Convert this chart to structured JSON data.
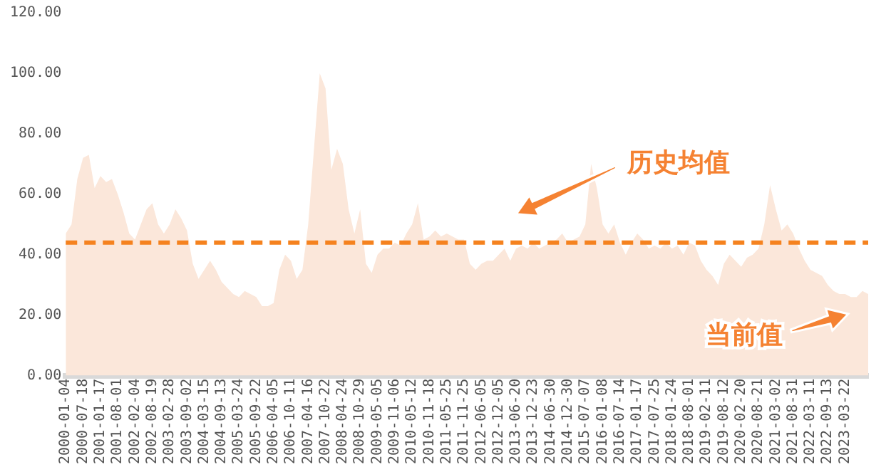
{
  "chart_data": {
    "type": "area",
    "categories": [
      "2000-01-04",
      null,
      null,
      "2000-07-18",
      null,
      null,
      "2001-01-17",
      null,
      null,
      "2001-08-01",
      null,
      null,
      "2002-02-04",
      null,
      null,
      "2002-08-19",
      null,
      null,
      "2003-02-28",
      null,
      null,
      "2003-09-02",
      null,
      null,
      "2004-03-15",
      null,
      null,
      "2004-09-13",
      null,
      null,
      "2005-03-24",
      null,
      null,
      "2005-09-22",
      null,
      null,
      "2006-04-05",
      null,
      null,
      "2006-10-11",
      null,
      null,
      "2007-04-16",
      null,
      null,
      "2007-10-22",
      null,
      null,
      "2008-04-24",
      null,
      null,
      "2008-10-29",
      null,
      null,
      "2009-05-05",
      null,
      null,
      "2009-11-06",
      null,
      null,
      "2010-05-12",
      null,
      null,
      "2010-11-18",
      null,
      null,
      "2011-05-25",
      null,
      null,
      "2011-11-25",
      null,
      null,
      "2012-06-05",
      null,
      null,
      "2012-12-05",
      null,
      null,
      "2013-06-20",
      null,
      null,
      "2013-12-23",
      null,
      null,
      "2014-06-30",
      null,
      null,
      "2014-12-30",
      null,
      null,
      "2015-07-07",
      null,
      null,
      "2016-01-08",
      null,
      null,
      "2016-07-14",
      null,
      null,
      "2017-01-17",
      null,
      null,
      "2017-07-25",
      null,
      null,
      "2018-01-24",
      null,
      null,
      "2018-08-01",
      null,
      null,
      "2019-02-11",
      null,
      null,
      "2019-08-12",
      null,
      null,
      "2020-02-20",
      null,
      null,
      "2020-08-21",
      null,
      null,
      "2021-03-02",
      null,
      null,
      "2021-08-31",
      null,
      null,
      "2022-03-11",
      null,
      null,
      "2022-09-13",
      null,
      null,
      "2023-03-22",
      null,
      null,
      null,
      null
    ],
    "values": [
      47,
      50,
      65,
      72,
      73,
      62,
      66,
      64,
      65,
      60,
      54,
      47,
      45,
      50,
      55,
      57,
      50,
      47,
      50,
      55,
      52,
      48,
      37,
      32,
      35,
      38,
      35,
      31,
      29,
      27,
      26,
      28,
      27,
      26,
      23,
      23,
      24,
      35,
      40,
      38,
      32,
      35,
      50,
      75,
      100,
      95,
      68,
      75,
      70,
      55,
      47,
      55,
      37,
      34,
      40,
      42,
      42,
      44,
      43,
      47,
      50,
      57,
      45,
      46,
      48,
      46,
      47,
      46,
      45,
      45,
      37,
      35,
      37,
      38,
      38,
      40,
      42,
      38,
      42,
      43,
      42,
      44,
      42,
      43,
      44,
      45,
      47,
      44,
      45,
      46,
      50,
      70,
      62,
      50,
      47,
      50,
      44,
      40,
      44,
      47,
      45,
      42,
      43,
      42,
      44,
      42,
      43,
      40,
      44,
      43,
      38,
      35,
      33,
      30,
      37,
      40,
      38,
      36,
      39,
      40,
      42,
      50,
      63,
      55,
      48,
      50,
      47,
      42,
      38,
      35,
      34,
      33,
      30,
      28,
      27,
      27,
      26,
      26,
      28,
      27
    ],
    "color": "#fbe7da",
    "ylim": [
      0,
      120
    ],
    "yticks": [
      {
        "value": 0,
        "label": "0.00"
      },
      {
        "value": 20,
        "label": "20.00"
      },
      {
        "value": 40,
        "label": "40.00"
      },
      {
        "value": 60,
        "label": "60.00"
      },
      {
        "value": 80,
        "label": "80.00"
      },
      {
        "value": 100,
        "label": "100.00"
      },
      {
        "value": 120,
        "label": "120.00"
      }
    ],
    "grid": false,
    "ref_lines": [
      {
        "axis": "y",
        "value": 44,
        "label": "历史均值",
        "color": "#f5821f",
        "line_style": "dashed"
      }
    ],
    "annotations": [
      "当前值"
    ]
  }
}
